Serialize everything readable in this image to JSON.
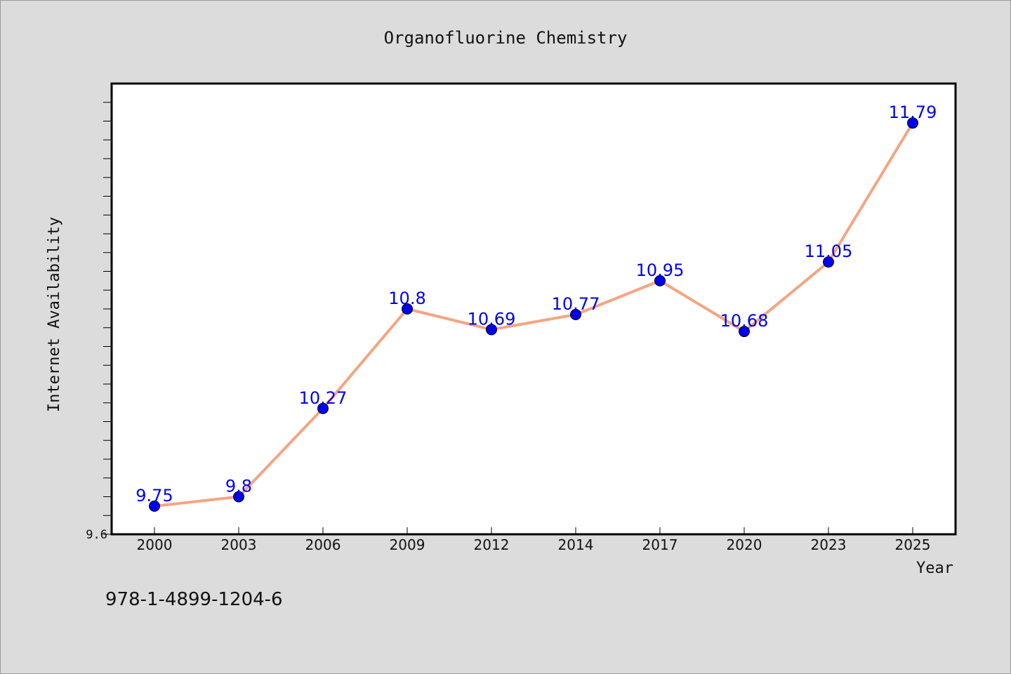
{
  "chart_data": {
    "type": "line",
    "title": "Organofluorine Chemistry",
    "xlabel": "Year",
    "ylabel": "Internet Availability",
    "categories": [
      "2000",
      "2003",
      "2006",
      "2009",
      "2012",
      "2014",
      "2017",
      "2020",
      "2023",
      "2025"
    ],
    "series": [
      {
        "values": [
          9.75,
          9.8,
          10.27,
          10.8,
          10.69,
          10.77,
          10.95,
          10.68,
          11.05,
          11.79
        ],
        "data_labels": [
          "9.75",
          "9.8",
          "10.27",
          "10.8",
          "10.69",
          "10.77",
          "10.95",
          "10.68",
          "11.05",
          "11.79"
        ],
        "line_color": "#f4a582",
        "marker_color": "#0000ee",
        "label_color": "#0000ee"
      }
    ],
    "ylim": [
      9.6,
      12.0
    ],
    "y_ticks_labeled": [
      "9.6"
    ],
    "y_minor_step": 0.1,
    "grid": false,
    "legend": "none"
  },
  "footer": {
    "isbn": "978-1-4899-1204-6"
  },
  "colors": {
    "background": "#dcdcdc",
    "plot_background": "#ffffff",
    "axis": "#000000"
  }
}
